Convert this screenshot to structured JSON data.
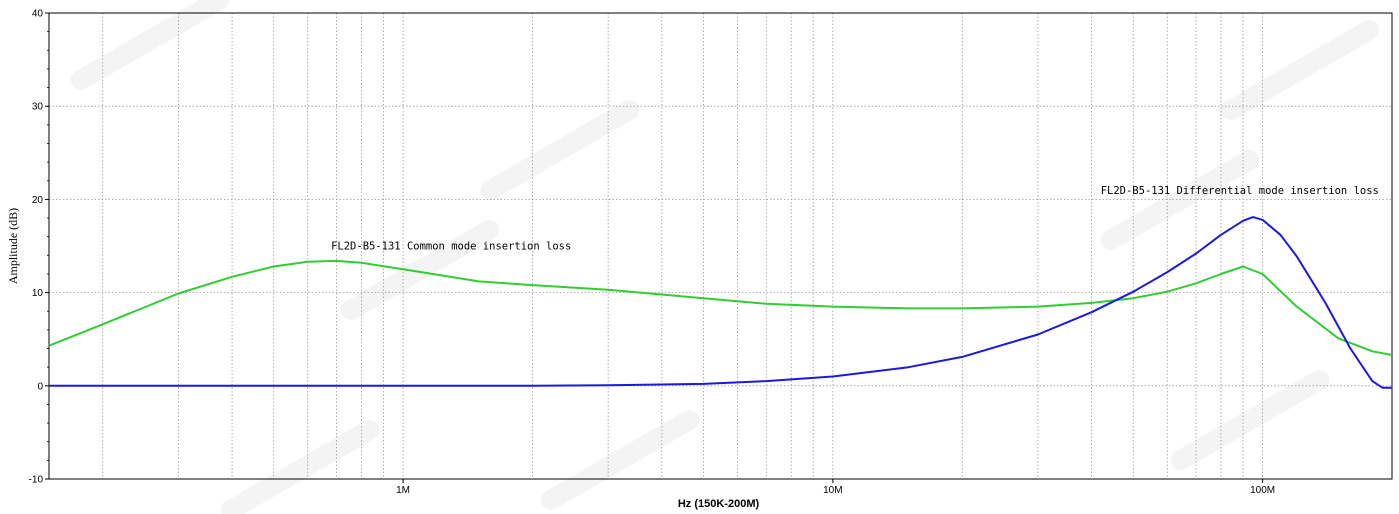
{
  "chart_data": {
    "type": "line",
    "title": "",
    "xlabel": "Hz  (150K-200M)",
    "ylabel": "Amplitude (dB)",
    "x_scale": "log",
    "xlim": [
      150000,
      200000000
    ],
    "ylim": [
      -10,
      40
    ],
    "y_ticks": [
      -10,
      0,
      10,
      20,
      30,
      40
    ],
    "x_tick_labels": [
      {
        "value": 1000000,
        "label": "1M"
      },
      {
        "value": 10000000,
        "label": "10M"
      },
      {
        "value": 100000000,
        "label": "100M"
      }
    ],
    "grid": true,
    "legend": "none",
    "series": [
      {
        "name": "FL2D-B5-131 Common mode insertion loss",
        "color": "#33cc33",
        "x": [
          150000,
          200000,
          300000,
          400000,
          500000,
          600000,
          700000,
          800000,
          1000000,
          1500000,
          2000000,
          3000000,
          5000000,
          7000000,
          10000000,
          15000000,
          20000000,
          30000000,
          40000000,
          50000000,
          60000000,
          70000000,
          80000000,
          90000000,
          100000000,
          120000000,
          150000000,
          180000000,
          200000000
        ],
        "y": [
          4.3,
          6.6,
          9.9,
          11.7,
          12.8,
          13.3,
          13.4,
          13.2,
          12.5,
          11.2,
          10.8,
          10.3,
          9.4,
          8.8,
          8.5,
          8.3,
          8.3,
          8.5,
          8.9,
          9.4,
          10.1,
          11.0,
          12.0,
          12.8,
          12.0,
          8.5,
          5.1,
          3.7,
          3.3
        ]
      },
      {
        "name": "FL2D-B5-131 Differential mode insertion loss",
        "color": "#1a1add",
        "x": [
          150000,
          200000,
          300000,
          500000,
          1000000,
          2000000,
          3000000,
          5000000,
          7000000,
          10000000,
          15000000,
          20000000,
          30000000,
          40000000,
          50000000,
          60000000,
          70000000,
          80000000,
          90000000,
          95000000,
          100000000,
          110000000,
          120000000,
          140000000,
          160000000,
          180000000,
          190000000,
          200000000
        ],
        "y": [
          0,
          0,
          0,
          0,
          0,
          0,
          0.05,
          0.2,
          0.5,
          1.0,
          2.0,
          3.1,
          5.5,
          7.9,
          10.1,
          12.2,
          14.2,
          16.2,
          17.7,
          18.1,
          17.8,
          16.2,
          13.9,
          8.9,
          4.0,
          0.5,
          -0.2,
          -0.2
        ]
      }
    ],
    "annotations": [
      {
        "text": "FL2D-B5-131 Common mode insertion loss",
        "x": 680000,
        "y": 14.6
      },
      {
        "text": "FL2D-B5-131 Differential mode insertion loss",
        "x": 42000000,
        "y": 20.6
      }
    ]
  }
}
